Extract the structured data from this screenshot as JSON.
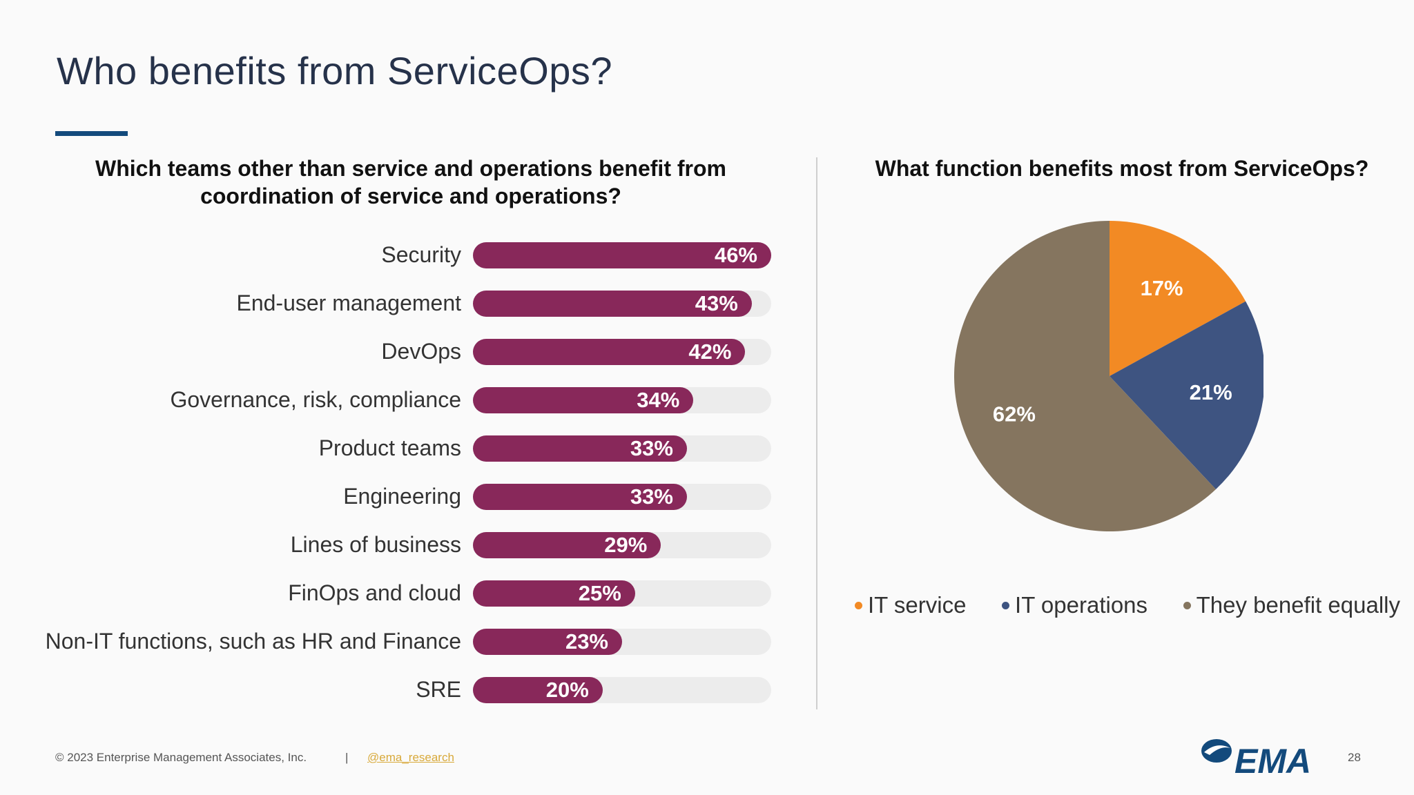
{
  "slide": {
    "title": "Who benefits from ServiceOps?",
    "accent_color": "#134a7c"
  },
  "chart_data": [
    {
      "type": "bar",
      "orientation": "horizontal",
      "title": "Which teams other than service and operations benefit from coordination of service and operations?",
      "categories": [
        "Security",
        "End-user management",
        "DevOps",
        "Governance, risk, compliance",
        "Product teams",
        "Engineering",
        "Lines of business",
        "FinOps and cloud",
        "Non-IT functions, such as HR and Finance",
        "SRE"
      ],
      "values": [
        46,
        43,
        42,
        34,
        33,
        33,
        29,
        25,
        23,
        20
      ],
      "value_labels": [
        "46%",
        "43%",
        "42%",
        "34%",
        "33%",
        "33%",
        "29%",
        "25%",
        "23%",
        "20%"
      ],
      "xlim": [
        0,
        46
      ],
      "bar_color": "#88285a",
      "track_color": "#ececec"
    },
    {
      "type": "pie",
      "title": "What function benefits most from ServiceOps?",
      "labels": [
        "IT service",
        "IT operations",
        "They benefit equally"
      ],
      "values": [
        17,
        21,
        62
      ],
      "value_labels": [
        "17%",
        "21%",
        "62%"
      ],
      "colors": [
        "#f28a24",
        "#3e5481",
        "#85755f"
      ],
      "legend_position": "bottom"
    }
  ],
  "footer": {
    "copyright": "© 2023 Enterprise Management Associates, Inc.",
    "separator": "|",
    "handle": "@ema_research",
    "page_number": "28",
    "logo_text": "EMA",
    "logo_icon": "ema-swoosh-icon"
  }
}
